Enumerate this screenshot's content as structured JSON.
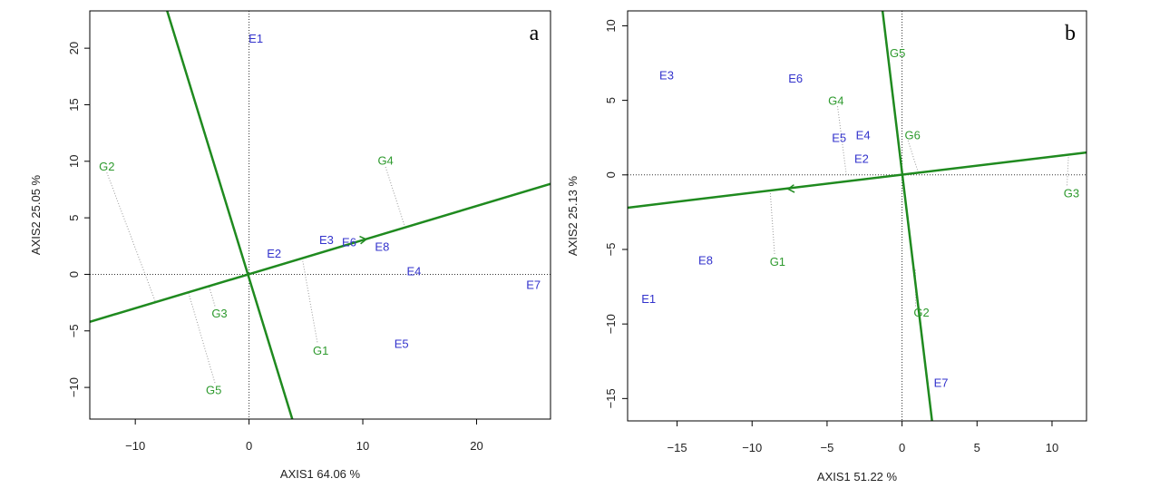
{
  "chart_data": [
    {
      "type": "scatter",
      "panel_label": "a",
      "xlabel": "AXIS1 64.06 %",
      "ylabel": "AXIS2 25.05 %",
      "xlim": [
        -14,
        26.5
      ],
      "ylim": [
        -12.8,
        23.3
      ],
      "xticks": [
        -10,
        0,
        10,
        20
      ],
      "yticks": [
        -10,
        -5,
        0,
        5,
        10,
        15,
        20
      ],
      "environments": [
        {
          "label": "E1",
          "x": 0.6,
          "y": 20.9
        },
        {
          "label": "E2",
          "x": 2.2,
          "y": 1.9
        },
        {
          "label": "E3",
          "x": 6.8,
          "y": 3.1
        },
        {
          "label": "E6",
          "x": 8.8,
          "y": 2.9
        },
        {
          "label": "E8",
          "x": 11.7,
          "y": 2.5
        },
        {
          "label": "E4",
          "x": 14.5,
          "y": 0.3
        },
        {
          "label": "E7",
          "x": 25.0,
          "y": -0.9
        },
        {
          "label": "E5",
          "x": 13.4,
          "y": -6.1
        }
      ],
      "genotypes": [
        {
          "label": "G2",
          "x": -12.5,
          "y": 9.6
        },
        {
          "label": "G4",
          "x": 12.0,
          "y": 10.1
        },
        {
          "label": "G3",
          "x": -2.6,
          "y": -3.4
        },
        {
          "label": "G1",
          "x": 6.3,
          "y": -6.7
        },
        {
          "label": "G5",
          "x": -3.1,
          "y": -10.2
        }
      ],
      "projections": [
        {
          "from": [
            -12.5,
            9.0
          ],
          "to": [
            -8.2,
            -2.5
          ]
        },
        {
          "from": [
            12.0,
            9.5
          ],
          "to": [
            13.7,
            4.2
          ]
        },
        {
          "from": [
            -3.0,
            -2.8
          ],
          "to": [
            -3.5,
            -1.1
          ]
        },
        {
          "from": [
            6.0,
            -6.0
          ],
          "to": [
            4.7,
            1.3
          ]
        },
        {
          "from": [
            -3.0,
            -9.6
          ],
          "to": [
            -5.3,
            -1.7
          ]
        }
      ],
      "ate_line": {
        "from": [
          -14,
          -4.2
        ],
        "to": [
          26.5,
          8.0
        ]
      },
      "perp_line": {
        "from": [
          -7.2,
          23.3
        ],
        "to": [
          3.8,
          -12.8
        ]
      },
      "arrow": {
        "from": [
          8.8,
          2.9
        ],
        "to": [
          10.3,
          3.1
        ]
      }
    },
    {
      "type": "scatter",
      "panel_label": "b",
      "xlabel": "AXIS1 51.22 %",
      "ylabel": "AXIS2 25.13 %",
      "xlim": [
        -18.3,
        12.3
      ],
      "ylim": [
        -16.5,
        11.0
      ],
      "xticks": [
        -15,
        -10,
        -5,
        0,
        5,
        10
      ],
      "yticks": [
        -15,
        -10,
        -5,
        0,
        5,
        10
      ],
      "environments": [
        {
          "label": "E3",
          "x": -15.7,
          "y": 6.7
        },
        {
          "label": "E6",
          "x": -7.1,
          "y": 6.5
        },
        {
          "label": "E4",
          "x": -2.6,
          "y": 2.7
        },
        {
          "label": "E5",
          "x": -4.2,
          "y": 2.5
        },
        {
          "label": "E2",
          "x": -2.7,
          "y": 1.1
        },
        {
          "label": "E8",
          "x": -13.1,
          "y": -5.7
        },
        {
          "label": "E1",
          "x": -16.9,
          "y": -8.3
        },
        {
          "label": "E7",
          "x": 2.6,
          "y": -13.9
        }
      ],
      "genotypes": [
        {
          "label": "G5",
          "x": -0.3,
          "y": 8.2
        },
        {
          "label": "G4",
          "x": -4.4,
          "y": 5.0
        },
        {
          "label": "G6",
          "x": 0.7,
          "y": 2.7
        },
        {
          "label": "G3",
          "x": 11.3,
          "y": -1.2
        },
        {
          "label": "G1",
          "x": -8.3,
          "y": -5.8
        },
        {
          "label": "G2",
          "x": 1.3,
          "y": -9.2
        }
      ],
      "projections": [
        {
          "from": [
            -4.3,
            4.6
          ],
          "to": [
            -3.7,
            -0.1
          ]
        },
        {
          "from": [
            0.4,
            2.3
          ],
          "to": [
            1.1,
            0.1
          ]
        },
        {
          "from": [
            11.0,
            -0.7
          ],
          "to": [
            11.1,
            1.3
          ]
        },
        {
          "from": [
            -8.5,
            -5.3
          ],
          "to": [
            -8.8,
            -1.0
          ]
        },
        {
          "from": [
            0.9,
            -8.8
          ],
          "to": [
            0.9,
            -6.3
          ]
        }
      ],
      "ate_line": {
        "from": [
          -18.3,
          -2.2
        ],
        "to": [
          12.3,
          1.5
        ]
      },
      "perp_line": {
        "from": [
          -1.3,
          11.0
        ],
        "to": [
          2.0,
          -16.5
        ]
      },
      "arrow": {
        "from": [
          -7.0,
          -0.9
        ],
        "to": [
          -7.6,
          -0.95
        ]
      }
    }
  ]
}
